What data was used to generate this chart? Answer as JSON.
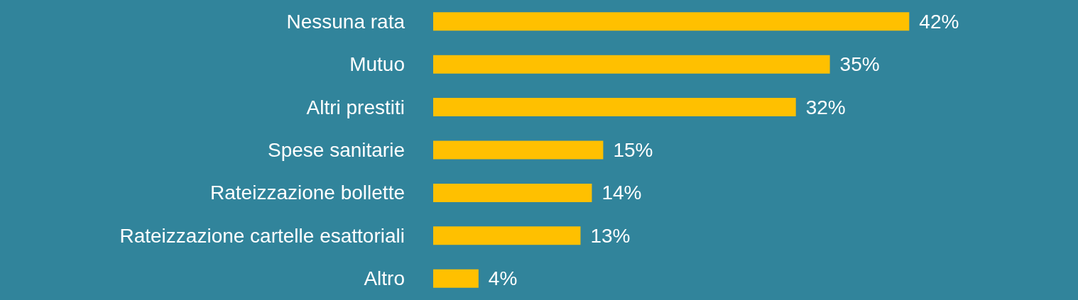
{
  "chart_data": {
    "type": "bar",
    "orientation": "horizontal",
    "categories": [
      "Nessuna rata",
      "Mutuo",
      "Altri prestiti",
      "Spese sanitarie",
      "Rateizzazione bollette",
      "Rateizzazione cartelle esattoriali",
      "Altro"
    ],
    "values": [
      42,
      35,
      32,
      15,
      14,
      13,
      4
    ],
    "value_labels": [
      "42%",
      "35%",
      "32%",
      "15%",
      "14%",
      "13%",
      "4%"
    ],
    "color": "#ffc000",
    "tick_labels": "y"
  }
}
